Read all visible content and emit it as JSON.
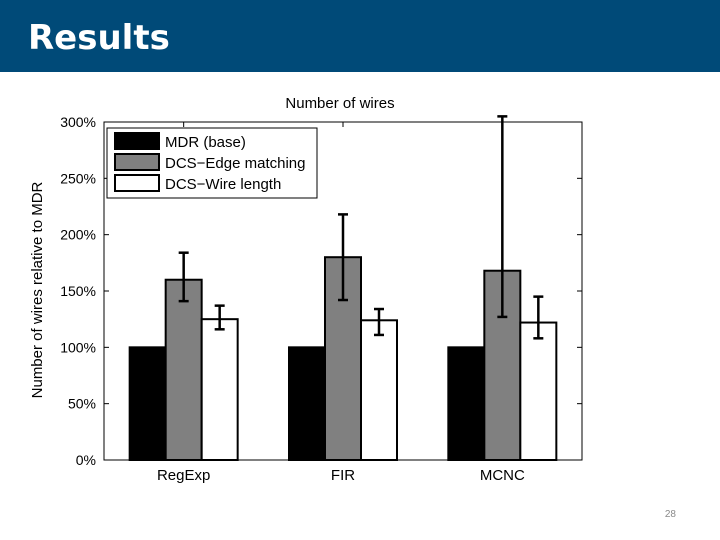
{
  "slide": {
    "title": "Results",
    "page_number": "28",
    "title_bar_color": "#004a78"
  },
  "chart_data": {
    "type": "bar",
    "title": "Number of wires",
    "xlabel": "",
    "ylabel": "Number of wires relative to MDR",
    "categories": [
      "RegExp",
      "FIR",
      "MCNC"
    ],
    "ylim": [
      0,
      300
    ],
    "yticks": [
      0,
      50,
      100,
      150,
      200,
      250,
      300
    ],
    "ytick_labels": [
      "0%",
      "50%",
      "100%",
      "150%",
      "200%",
      "250%",
      "300%"
    ],
    "grid": false,
    "legend_position": "top-left",
    "series": [
      {
        "name": "MDR (base)",
        "color": "#000000",
        "values": [
          100,
          100,
          100
        ],
        "err_low": [
          null,
          null,
          null
        ],
        "err_high": [
          null,
          null,
          null
        ]
      },
      {
        "name": "DCS−Edge matching",
        "color": "#808080",
        "values": [
          160,
          180,
          168
        ],
        "err_low": [
          141,
          142,
          127
        ],
        "err_high": [
          184,
          218,
          305
        ]
      },
      {
        "name": "DCS−Wire length",
        "color": "#ffffff",
        "values": [
          125,
          124,
          122
        ],
        "err_low": [
          116,
          111,
          108
        ],
        "err_high": [
          137,
          134,
          145
        ]
      }
    ]
  }
}
